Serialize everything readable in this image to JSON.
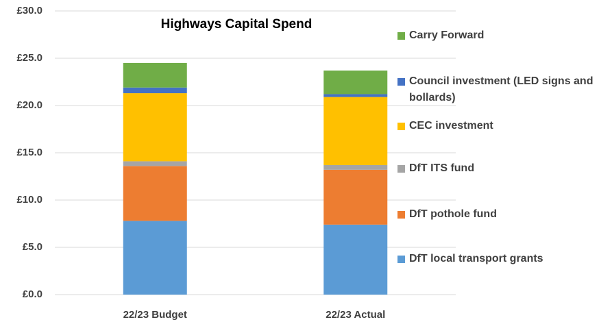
{
  "chart_data": {
    "type": "stacked-bar",
    "title": "Highways Capital Spend",
    "categories": [
      "22/23 Budget",
      "22/23 Actual"
    ],
    "series": [
      {
        "name": "DfT local transport grants",
        "color": "#5b9bd5",
        "values": [
          7.8,
          7.4
        ]
      },
      {
        "name": "DfT pothole fund",
        "color": "#ed7d31",
        "values": [
          5.8,
          5.8
        ]
      },
      {
        "name": "DfT ITS fund",
        "color": "#a5a5a5",
        "values": [
          0.5,
          0.5
        ]
      },
      {
        "name": "CEC investment",
        "color": "#ffc000",
        "values": [
          7.2,
          7.2
        ]
      },
      {
        "name": "Council investment (LED signs and bollards)",
        "color": "#4472c4",
        "values": [
          0.6,
          0.3
        ]
      },
      {
        "name": "Carry Forward",
        "color": "#70ad47",
        "values": [
          2.6,
          2.5
        ]
      }
    ],
    "ylim": [
      0,
      30
    ],
    "yticks": [
      {
        "value": 0,
        "label": "£0.0"
      },
      {
        "value": 5,
        "label": "£5.0"
      },
      {
        "value": 10,
        "label": "£10.0"
      },
      {
        "value": 15,
        "label": "£15.0"
      },
      {
        "value": 20,
        "label": "£20.0"
      },
      {
        "value": 25,
        "label": "£25.0"
      },
      {
        "value": 30,
        "label": "£30.0"
      }
    ],
    "grid": true,
    "legend": "right"
  }
}
